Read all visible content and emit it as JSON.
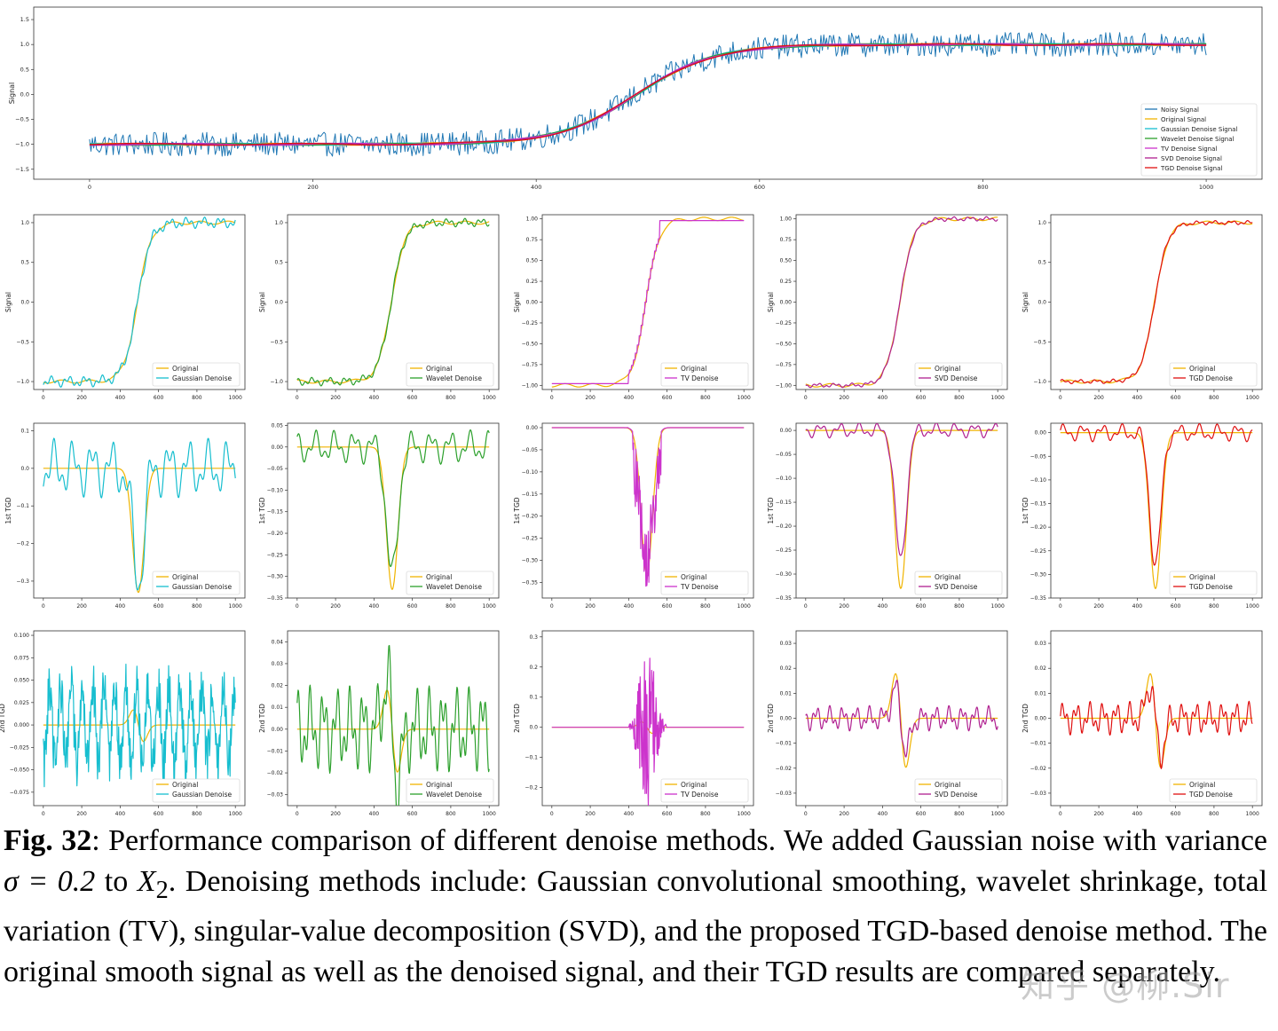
{
  "caption": {
    "label": "Fig. 32",
    "text_1": ": Performance comparison of different denoise methods. We added Gaussian noise with variance ",
    "math_var": "σ = 0.2",
    "text_2": " to ",
    "math_x": "X",
    "math_sub": "2",
    "text_3": ". Denoising methods include: Gaussian convolutional smoothing, wavelet shrinkage, total variation (TV), singular-value decomposition (SVD), and the proposed TGD-based denoise method. The original smooth signal as well as the denoised signal, and their TGD results are compared separately."
  },
  "watermark": "知乎 @柳.Sir",
  "colors": {
    "noisy": "#1f77b4",
    "original": "#f0b400",
    "gaussian": "#17becf",
    "wavelet": "#2ca02c",
    "tv": "#cc33cc",
    "svd": "#b02090",
    "tgd": "#e01010"
  },
  "chart_data": [
    {
      "id": "top",
      "type": "line",
      "title": "",
      "xlabel": "",
      "ylabel": "Signal",
      "xlim": [
        -50,
        1050
      ],
      "ylim": [
        -1.7,
        1.75
      ],
      "xticks": [
        0,
        200,
        400,
        600,
        800,
        1000
      ],
      "yticks": [
        -1.5,
        -1.0,
        -0.5,
        0.0,
        0.5,
        1.0,
        1.5
      ],
      "yticklabels": [
        "−1.5",
        "−1.0",
        "−0.5",
        "0.0",
        "0.5",
        "1.0",
        "1.5"
      ],
      "legend_position": "lower-right",
      "series": [
        {
          "name": "Noisy Signal",
          "color_key": "noisy",
          "kind": "noisy",
          "amplitude": 0.2
        },
        {
          "name": "Original Signal",
          "color_key": "original",
          "kind": "signal"
        },
        {
          "name": "Gaussian Denoise Signal",
          "color_key": "gaussian",
          "kind": "signal"
        },
        {
          "name": "Wavelet Denoise Signal",
          "color_key": "wavelet",
          "kind": "signal"
        },
        {
          "name": "TV Denoise Signal",
          "color_key": "tv",
          "kind": "signal"
        },
        {
          "name": "SVD Denoise Signal",
          "color_key": "svd",
          "kind": "signal"
        },
        {
          "name": "TGD Denoise Signal",
          "color_key": "tgd",
          "kind": "signal"
        }
      ]
    },
    {
      "id": "signal-gaussian",
      "type": "line",
      "ylabel": "Signal",
      "xlim": [
        -50,
        1050
      ],
      "ylim": [
        -1.1,
        1.1
      ],
      "xticks": [
        0,
        200,
        400,
        600,
        800,
        1000
      ],
      "yticks": [
        -1.0,
        -0.5,
        0.0,
        0.5,
        1.0
      ],
      "yticklabels": [
        "−1.0",
        "−0.5",
        "0.0",
        "0.5",
        "1.0"
      ],
      "legend_position": "lower-right",
      "series": [
        {
          "name": "Original",
          "color_key": "original",
          "kind": "signal"
        },
        {
          "name": "Gaussian Denoise",
          "color_key": "gaussian",
          "kind": "signal-wiggle",
          "amplitude": 0.04
        }
      ]
    },
    {
      "id": "signal-wavelet",
      "type": "line",
      "ylabel": "Signal",
      "xlim": [
        -50,
        1050
      ],
      "ylim": [
        -1.1,
        1.1
      ],
      "xticks": [
        0,
        200,
        400,
        600,
        800,
        1000
      ],
      "yticks": [
        -1.0,
        -0.5,
        0.0,
        0.5,
        1.0
      ],
      "yticklabels": [
        "−1.0",
        "−0.5",
        "0.0",
        "0.5",
        "1.0"
      ],
      "legend_position": "lower-right",
      "series": [
        {
          "name": "Original",
          "color_key": "original",
          "kind": "signal"
        },
        {
          "name": "Wavelet Denoise",
          "color_key": "wavelet",
          "kind": "signal-wiggle",
          "amplitude": 0.03
        }
      ]
    },
    {
      "id": "signal-tv",
      "type": "line",
      "ylabel": "Signal",
      "xlim": [
        -50,
        1050
      ],
      "ylim": [
        -1.05,
        1.05
      ],
      "xticks": [
        0,
        200,
        400,
        600,
        800,
        1000
      ],
      "yticks": [
        -1.0,
        -0.75,
        -0.5,
        -0.25,
        0.0,
        0.25,
        0.5,
        0.75,
        1.0
      ],
      "yticklabels": [
        "−1.00",
        "−0.75",
        "−0.50",
        "−0.25",
        "0.00",
        "0.25",
        "0.50",
        "0.75",
        "1.00"
      ],
      "legend_position": "lower-right",
      "series": [
        {
          "name": "Original",
          "color_key": "original",
          "kind": "signal"
        },
        {
          "name": "TV Denoise",
          "color_key": "tv",
          "kind": "signal-steps",
          "amplitude": 0.0
        }
      ]
    },
    {
      "id": "signal-svd",
      "type": "line",
      "ylabel": "Signal",
      "xlim": [
        -50,
        1050
      ],
      "ylim": [
        -1.05,
        1.05
      ],
      "xticks": [
        0,
        200,
        400,
        600,
        800,
        1000
      ],
      "yticks": [
        -1.0,
        -0.75,
        -0.5,
        -0.25,
        0.0,
        0.25,
        0.5,
        0.75,
        1.0
      ],
      "yticklabels": [
        "−1.00",
        "−0.75",
        "−0.50",
        "−0.25",
        "0.00",
        "0.25",
        "0.50",
        "0.75",
        "1.00"
      ],
      "legend_position": "lower-right",
      "series": [
        {
          "name": "Original",
          "color_key": "original",
          "kind": "signal"
        },
        {
          "name": "SVD Denoise",
          "color_key": "svd",
          "kind": "signal-wiggle",
          "amplitude": 0.015
        }
      ]
    },
    {
      "id": "signal-tgd",
      "type": "line",
      "ylabel": "Signal",
      "xlim": [
        -50,
        1050
      ],
      "ylim": [
        -1.1,
        1.1
      ],
      "xticks": [
        0,
        200,
        400,
        600,
        800,
        1000
      ],
      "yticks": [
        -1.0,
        -0.5,
        0.0,
        0.5,
        1.0
      ],
      "yticklabels": [
        "−1.0",
        "−0.5",
        "0.0",
        "0.5",
        "1.0"
      ],
      "legend_position": "lower-right",
      "series": [
        {
          "name": "Original",
          "color_key": "original",
          "kind": "signal"
        },
        {
          "name": "TGD  Denoise",
          "color_key": "tgd",
          "kind": "signal-wiggle",
          "amplitude": 0.015
        }
      ]
    },
    {
      "id": "tgd1-gaussian",
      "type": "line",
      "ylabel": "1st TGD",
      "xlim": [
        -50,
        1050
      ],
      "ylim": [
        -0.345,
        0.12
      ],
      "xticks": [
        0,
        200,
        400,
        600,
        800,
        1000
      ],
      "yticks": [
        -0.3,
        -0.2,
        -0.1,
        0.0,
        0.1
      ],
      "yticklabels": [
        "−0.3",
        "−0.2",
        "−0.1",
        "0.0",
        "0.1"
      ],
      "legend_position": "lower-right",
      "series": [
        {
          "name": "Original",
          "color_key": "original",
          "kind": "dip",
          "depth": -0.33
        },
        {
          "name": "Gaussian Denoise",
          "color_key": "gaussian",
          "kind": "dip-wiggle",
          "depth": -0.3,
          "amplitude": 0.05
        }
      ]
    },
    {
      "id": "tgd1-wavelet",
      "type": "line",
      "ylabel": "1st TGD",
      "xlim": [
        -50,
        1050
      ],
      "ylim": [
        -0.35,
        0.055
      ],
      "xticks": [
        0,
        200,
        400,
        600,
        800,
        1000
      ],
      "yticks": [
        -0.35,
        -0.3,
        -0.25,
        -0.2,
        -0.15,
        -0.1,
        -0.05,
        0.0,
        0.05
      ],
      "yticklabels": [
        "−0.35",
        "−0.30",
        "−0.25",
        "−0.20",
        "−0.15",
        "−0.10",
        "−0.05",
        "0.00",
        "0.05"
      ],
      "legend_position": "lower-right",
      "series": [
        {
          "name": "Original",
          "color_key": "original",
          "kind": "dip",
          "depth": -0.33
        },
        {
          "name": "Wavelet Denoise",
          "color_key": "wavelet",
          "kind": "dip-wiggle",
          "depth": -0.3,
          "amplitude": 0.025
        }
      ]
    },
    {
      "id": "tgd1-tv",
      "type": "line",
      "ylabel": "1st TGD",
      "xlim": [
        -50,
        1050
      ],
      "ylim": [
        -0.385,
        0.01
      ],
      "xticks": [
        0,
        200,
        400,
        600,
        800,
        1000
      ],
      "yticks": [
        -0.35,
        -0.3,
        -0.25,
        -0.2,
        -0.15,
        -0.1,
        -0.05,
        0.0
      ],
      "yticklabels": [
        "−0.35",
        "−0.30",
        "−0.25",
        "−0.20",
        "−0.15",
        "−0.10",
        "−0.05",
        "0.00"
      ],
      "legend_position": "lower-right",
      "series": [
        {
          "name": "Original",
          "color_key": "original",
          "kind": "dip",
          "depth": -0.33
        },
        {
          "name": "TV Denoise",
          "color_key": "tv",
          "kind": "dip-spiky",
          "depth": -0.36,
          "amplitude": 0.08
        }
      ]
    },
    {
      "id": "tgd1-svd",
      "type": "line",
      "ylabel": "1st TGD",
      "xlim": [
        -50,
        1050
      ],
      "ylim": [
        -0.35,
        0.015
      ],
      "xticks": [
        0,
        200,
        400,
        600,
        800,
        1000
      ],
      "yticks": [
        -0.35,
        -0.3,
        -0.25,
        -0.2,
        -0.15,
        -0.1,
        -0.05,
        0.0
      ],
      "yticklabels": [
        "−0.35",
        "−0.30",
        "−0.25",
        "−0.20",
        "−0.15",
        "−0.10",
        "−0.05",
        "0.00"
      ],
      "legend_position": "lower-right",
      "series": [
        {
          "name": "Original",
          "color_key": "original",
          "kind": "dip",
          "depth": -0.33
        },
        {
          "name": "SVD Denoise",
          "color_key": "svd",
          "kind": "dip-wiggle",
          "depth": -0.27,
          "amplitude": 0.01
        }
      ]
    },
    {
      "id": "tgd1-tgd",
      "type": "line",
      "ylabel": "1st TGD",
      "xlim": [
        -50,
        1050
      ],
      "ylim": [
        -0.35,
        0.02
      ],
      "xticks": [
        0,
        200,
        400,
        600,
        800,
        1000
      ],
      "yticks": [
        -0.35,
        -0.3,
        -0.25,
        -0.2,
        -0.15,
        -0.1,
        -0.05,
        0.0
      ],
      "yticklabels": [
        "−0.35",
        "−0.30",
        "−0.25",
        "−0.20",
        "−0.15",
        "−0.10",
        "−0.05",
        "0.00"
      ],
      "legend_position": "lower-right",
      "series": [
        {
          "name": "Original",
          "color_key": "original",
          "kind": "dip",
          "depth": -0.33
        },
        {
          "name": "TGD Denoise",
          "color_key": "tgd",
          "kind": "dip-wiggle",
          "depth": -0.28,
          "amplitude": 0.012
        }
      ]
    },
    {
      "id": "tgd2-gaussian",
      "type": "line",
      "ylabel": "2nd TGD",
      "xlim": [
        -50,
        1050
      ],
      "ylim": [
        -0.09,
        0.105
      ],
      "xticks": [
        0,
        200,
        400,
        600,
        800,
        1000
      ],
      "yticks": [
        -0.075,
        -0.05,
        -0.025,
        0.0,
        0.025,
        0.05,
        0.075,
        0.1
      ],
      "yticklabels": [
        "−0.075",
        "−0.050",
        "−0.025",
        "0.000",
        "0.025",
        "0.050",
        "0.075",
        "0.100"
      ],
      "legend_position": "lower-right",
      "series": [
        {
          "name": "Original",
          "color_key": "original",
          "kind": "wave",
          "peak": 0.03
        },
        {
          "name": "Gaussian Denoise",
          "color_key": "gaussian",
          "kind": "noise-osc",
          "amplitude": 0.06
        }
      ]
    },
    {
      "id": "tgd2-wavelet",
      "type": "line",
      "ylabel": "2nd TGD",
      "xlim": [
        -50,
        1050
      ],
      "ylim": [
        -0.035,
        0.045
      ],
      "xticks": [
        0,
        200,
        400,
        600,
        800,
        1000
      ],
      "yticks": [
        -0.03,
        -0.02,
        -0.01,
        0.0,
        0.01,
        0.02,
        0.03,
        0.04
      ],
      "yticklabels": [
        "−0.03",
        "−0.02",
        "−0.01",
        "0.00",
        "0.01",
        "0.02",
        "0.03",
        "0.04"
      ],
      "legend_position": "lower-right",
      "series": [
        {
          "name": "Original",
          "color_key": "original",
          "kind": "wave",
          "peak": 0.032
        },
        {
          "name": "Wavelet Denoise",
          "color_key": "wavelet",
          "kind": "wave-noisy",
          "peak": 0.042,
          "amplitude": 0.012
        }
      ]
    },
    {
      "id": "tgd2-tv",
      "type": "line",
      "ylabel": "2nd TGD",
      "xlim": [
        -50,
        1050
      ],
      "ylim": [
        -0.26,
        0.32
      ],
      "xticks": [
        0,
        200,
        400,
        600,
        800,
        1000
      ],
      "yticks": [
        -0.2,
        -0.1,
        0.0,
        0.1,
        0.2,
        0.3
      ],
      "yticklabels": [
        "−0.2",
        "−0.1",
        "0.0",
        "0.1",
        "0.2",
        "0.3"
      ],
      "legend_position": "lower-right",
      "series": [
        {
          "name": "Original",
          "color_key": "original",
          "kind": "wave",
          "peak": 0.032
        },
        {
          "name": "TV Denoise",
          "color_key": "tv",
          "kind": "burst",
          "amplitude": 0.28
        }
      ]
    },
    {
      "id": "tgd2-svd",
      "type": "line",
      "ylabel": "2nd TGD",
      "xlim": [
        -50,
        1050
      ],
      "ylim": [
        -0.035,
        0.035
      ],
      "xticks": [
        0,
        200,
        400,
        600,
        800,
        1000
      ],
      "yticks": [
        -0.03,
        -0.02,
        -0.01,
        0.0,
        0.01,
        0.02,
        0.03
      ],
      "yticklabels": [
        "−0.03",
        "−0.02",
        "−0.01",
        "0.00",
        "0.01",
        "0.02",
        "0.03"
      ],
      "legend_position": "lower-right",
      "series": [
        {
          "name": "Original",
          "color_key": "original",
          "kind": "wave",
          "peak": 0.032
        },
        {
          "name": "SVD Denoise",
          "color_key": "svd",
          "kind": "wave-noisy",
          "peak": 0.022,
          "amplitude": 0.003
        }
      ]
    },
    {
      "id": "tgd2-tgd",
      "type": "line",
      "ylabel": "2nd TGD",
      "xlim": [
        -50,
        1050
      ],
      "ylim": [
        -0.035,
        0.035
      ],
      "xticks": [
        0,
        200,
        400,
        600,
        800,
        1000
      ],
      "yticks": [
        -0.03,
        -0.02,
        -0.01,
        0.0,
        0.01,
        0.02,
        0.03
      ],
      "yticklabels": [
        "−0.03",
        "−0.02",
        "−0.01",
        "0.00",
        "0.01",
        "0.02",
        "0.03"
      ],
      "legend_position": "lower-right",
      "series": [
        {
          "name": "Original",
          "color_key": "original",
          "kind": "wave",
          "peak": 0.032
        },
        {
          "name": "TGD Denoise",
          "color_key": "tgd",
          "kind": "wave-noisy",
          "peak": 0.024,
          "amplitude": 0.004
        }
      ]
    }
  ]
}
